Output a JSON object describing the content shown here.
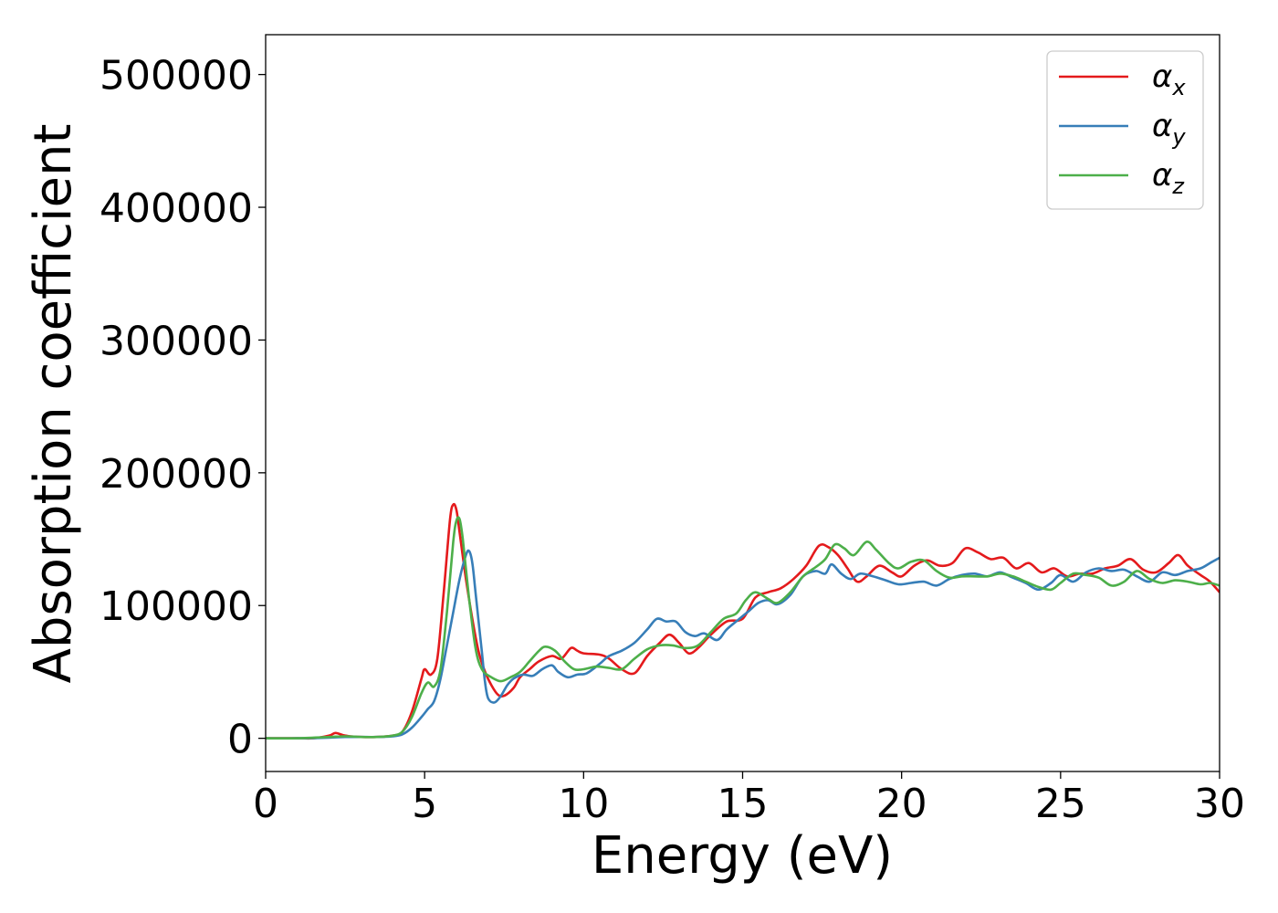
{
  "chart_data": {
    "type": "line",
    "title": "",
    "xlabel": "Energy (eV)",
    "ylabel": "Absorption coefficient",
    "xlim": [
      0,
      30
    ],
    "ylim": [
      -25000,
      530000
    ],
    "x_ticks": [
      0,
      5,
      10,
      15,
      20,
      25,
      30
    ],
    "y_ticks": [
      0,
      100000,
      200000,
      300000,
      400000,
      500000
    ],
    "grid": false,
    "legend_position": "top-right",
    "series": [
      {
        "name": "αx",
        "legend_main": "α",
        "legend_sub": "x",
        "color": "#e41a1c",
        "points": [
          [
            0,
            0
          ],
          [
            1,
            0
          ],
          [
            1.5,
            0
          ],
          [
            2.0,
            2000
          ],
          [
            2.2,
            4000
          ],
          [
            2.5,
            2000
          ],
          [
            3,
            1000
          ],
          [
            3.5,
            1000
          ],
          [
            4,
            2000
          ],
          [
            4.3,
            5000
          ],
          [
            4.6,
            20000
          ],
          [
            4.9,
            45000
          ],
          [
            5.0,
            52000
          ],
          [
            5.2,
            48000
          ],
          [
            5.4,
            60000
          ],
          [
            5.6,
            110000
          ],
          [
            5.8,
            165000
          ],
          [
            5.9,
            176000
          ],
          [
            6.0,
            172000
          ],
          [
            6.1,
            155000
          ],
          [
            6.3,
            120000
          ],
          [
            6.5,
            90000
          ],
          [
            6.7,
            65000
          ],
          [
            6.9,
            50000
          ],
          [
            7.1,
            40000
          ],
          [
            7.3,
            33000
          ],
          [
            7.5,
            32000
          ],
          [
            7.8,
            38000
          ],
          [
            8.0,
            46000
          ],
          [
            8.3,
            52000
          ],
          [
            8.6,
            58000
          ],
          [
            9.0,
            62000
          ],
          [
            9.3,
            60000
          ],
          [
            9.6,
            68000
          ],
          [
            9.8,
            66000
          ],
          [
            10,
            64000
          ],
          [
            10.5,
            63000
          ],
          [
            10.8,
            60000
          ],
          [
            11.2,
            52000
          ],
          [
            11.6,
            49000
          ],
          [
            12.0,
            62000
          ],
          [
            12.4,
            72000
          ],
          [
            12.7,
            78000
          ],
          [
            13.0,
            72000
          ],
          [
            13.3,
            64000
          ],
          [
            13.6,
            68000
          ],
          [
            14.0,
            78000
          ],
          [
            14.5,
            88000
          ],
          [
            15.0,
            90000
          ],
          [
            15.4,
            106000
          ],
          [
            15.8,
            110000
          ],
          [
            16.2,
            113000
          ],
          [
            16.6,
            120000
          ],
          [
            17.0,
            130000
          ],
          [
            17.4,
            145000
          ],
          [
            17.7,
            144000
          ],
          [
            18.0,
            138000
          ],
          [
            18.3,
            128000
          ],
          [
            18.6,
            118000
          ],
          [
            18.9,
            122000
          ],
          [
            19.3,
            130000
          ],
          [
            19.7,
            125000
          ],
          [
            20.0,
            122000
          ],
          [
            20.4,
            130000
          ],
          [
            20.8,
            134000
          ],
          [
            21.2,
            130000
          ],
          [
            21.6,
            132000
          ],
          [
            22.0,
            143000
          ],
          [
            22.4,
            140000
          ],
          [
            22.8,
            135000
          ],
          [
            23.2,
            136000
          ],
          [
            23.6,
            128000
          ],
          [
            24.0,
            132000
          ],
          [
            24.4,
            125000
          ],
          [
            24.8,
            128000
          ],
          [
            25.2,
            122000
          ],
          [
            25.6,
            124000
          ],
          [
            26.0,
            124000
          ],
          [
            26.4,
            128000
          ],
          [
            26.8,
            130000
          ],
          [
            27.2,
            135000
          ],
          [
            27.6,
            127000
          ],
          [
            28.0,
            125000
          ],
          [
            28.4,
            132000
          ],
          [
            28.7,
            138000
          ],
          [
            29.0,
            130000
          ],
          [
            29.4,
            123000
          ],
          [
            29.7,
            118000
          ],
          [
            30.0,
            110000
          ]
        ]
      },
      {
        "name": "αy",
        "legend_main": "α",
        "legend_sub": "y",
        "color": "#377eb8",
        "points": [
          [
            0,
            0
          ],
          [
            1,
            0
          ],
          [
            2.0,
            500
          ],
          [
            2.5,
            1000
          ],
          [
            3,
            1000
          ],
          [
            3.5,
            1000
          ],
          [
            4.0,
            1500
          ],
          [
            4.3,
            3000
          ],
          [
            4.6,
            8000
          ],
          [
            4.9,
            16000
          ],
          [
            5.1,
            22000
          ],
          [
            5.3,
            28000
          ],
          [
            5.5,
            45000
          ],
          [
            5.7,
            70000
          ],
          [
            5.9,
            95000
          ],
          [
            6.1,
            120000
          ],
          [
            6.3,
            138000
          ],
          [
            6.4,
            141000
          ],
          [
            6.5,
            132000
          ],
          [
            6.6,
            110000
          ],
          [
            6.8,
            65000
          ],
          [
            6.9,
            42000
          ],
          [
            7.0,
            30000
          ],
          [
            7.2,
            27000
          ],
          [
            7.4,
            32000
          ],
          [
            7.6,
            40000
          ],
          [
            7.8,
            45000
          ],
          [
            8.1,
            48000
          ],
          [
            8.4,
            47000
          ],
          [
            8.7,
            52000
          ],
          [
            9.0,
            55000
          ],
          [
            9.2,
            50000
          ],
          [
            9.5,
            46000
          ],
          [
            9.8,
            48000
          ],
          [
            10.1,
            49000
          ],
          [
            10.5,
            56000
          ],
          [
            10.8,
            62000
          ],
          [
            11.2,
            66000
          ],
          [
            11.6,
            72000
          ],
          [
            12.0,
            82000
          ],
          [
            12.3,
            90000
          ],
          [
            12.6,
            88000
          ],
          [
            12.9,
            88000
          ],
          [
            13.2,
            80000
          ],
          [
            13.5,
            77000
          ],
          [
            13.8,
            79000
          ],
          [
            14.2,
            74000
          ],
          [
            14.5,
            82000
          ],
          [
            14.9,
            90000
          ],
          [
            15.2,
            96000
          ],
          [
            15.5,
            102000
          ],
          [
            15.8,
            104000
          ],
          [
            16.1,
            101000
          ],
          [
            16.5,
            108000
          ],
          [
            16.9,
            122000
          ],
          [
            17.3,
            126000
          ],
          [
            17.6,
            124000
          ],
          [
            17.8,
            131000
          ],
          [
            18.1,
            124000
          ],
          [
            18.4,
            120000
          ],
          [
            18.7,
            124000
          ],
          [
            19.1,
            122000
          ],
          [
            19.5,
            119000
          ],
          [
            19.9,
            116000
          ],
          [
            20.3,
            117000
          ],
          [
            20.7,
            118000
          ],
          [
            21.1,
            115000
          ],
          [
            21.5,
            120000
          ],
          [
            21.9,
            123000
          ],
          [
            22.3,
            124000
          ],
          [
            22.7,
            122000
          ],
          [
            23.1,
            125000
          ],
          [
            23.5,
            121000
          ],
          [
            23.9,
            117000
          ],
          [
            24.3,
            112000
          ],
          [
            24.7,
            117000
          ],
          [
            25.0,
            123000
          ],
          [
            25.4,
            118000
          ],
          [
            25.8,
            125000
          ],
          [
            26.2,
            128000
          ],
          [
            26.6,
            126000
          ],
          [
            27.0,
            127000
          ],
          [
            27.4,
            122000
          ],
          [
            27.8,
            118000
          ],
          [
            28.2,
            125000
          ],
          [
            28.6,
            123000
          ],
          [
            29.0,
            126000
          ],
          [
            29.4,
            128000
          ],
          [
            29.7,
            132000
          ],
          [
            30.0,
            136000
          ]
        ]
      },
      {
        "name": "αz",
        "legend_main": "α",
        "legend_sub": "z",
        "color": "#4daf4a",
        "points": [
          [
            0,
            0
          ],
          [
            1,
            0
          ],
          [
            2.0,
            1000
          ],
          [
            2.5,
            1500
          ],
          [
            3,
            1000
          ],
          [
            3.5,
            1000
          ],
          [
            4.0,
            2000
          ],
          [
            4.3,
            5000
          ],
          [
            4.6,
            16000
          ],
          [
            4.9,
            34000
          ],
          [
            5.1,
            42000
          ],
          [
            5.3,
            39000
          ],
          [
            5.5,
            52000
          ],
          [
            5.7,
            95000
          ],
          [
            5.9,
            148000
          ],
          [
            6.0,
            164000
          ],
          [
            6.1,
            165000
          ],
          [
            6.2,
            150000
          ],
          [
            6.4,
            105000
          ],
          [
            6.6,
            68000
          ],
          [
            6.8,
            52000
          ],
          [
            7.1,
            46000
          ],
          [
            7.4,
            43000
          ],
          [
            7.7,
            46000
          ],
          [
            8.0,
            50000
          ],
          [
            8.3,
            58000
          ],
          [
            8.6,
            66000
          ],
          [
            8.8,
            69000
          ],
          [
            9.1,
            66000
          ],
          [
            9.4,
            58000
          ],
          [
            9.7,
            52000
          ],
          [
            10.0,
            52000
          ],
          [
            10.4,
            54000
          ],
          [
            10.8,
            53000
          ],
          [
            11.2,
            52000
          ],
          [
            11.6,
            60000
          ],
          [
            12.0,
            67000
          ],
          [
            12.4,
            70000
          ],
          [
            12.8,
            70000
          ],
          [
            13.2,
            68000
          ],
          [
            13.6,
            70000
          ],
          [
            14.0,
            80000
          ],
          [
            14.4,
            90000
          ],
          [
            14.8,
            94000
          ],
          [
            15.1,
            104000
          ],
          [
            15.4,
            110000
          ],
          [
            15.8,
            105000
          ],
          [
            16.1,
            102000
          ],
          [
            16.5,
            110000
          ],
          [
            16.9,
            122000
          ],
          [
            17.3,
            129000
          ],
          [
            17.6,
            135000
          ],
          [
            17.9,
            146000
          ],
          [
            18.2,
            143000
          ],
          [
            18.5,
            138000
          ],
          [
            18.9,
            148000
          ],
          [
            19.2,
            142000
          ],
          [
            19.6,
            132000
          ],
          [
            19.9,
            128000
          ],
          [
            20.3,
            133000
          ],
          [
            20.7,
            134000
          ],
          [
            21.1,
            126000
          ],
          [
            21.5,
            121000
          ],
          [
            21.9,
            122000
          ],
          [
            22.3,
            122000
          ],
          [
            22.7,
            122000
          ],
          [
            23.1,
            124000
          ],
          [
            23.5,
            122000
          ],
          [
            23.9,
            118000
          ],
          [
            24.3,
            114000
          ],
          [
            24.7,
            112000
          ],
          [
            25.0,
            117000
          ],
          [
            25.4,
            124000
          ],
          [
            25.8,
            123000
          ],
          [
            26.2,
            121000
          ],
          [
            26.6,
            115000
          ],
          [
            27.0,
            118000
          ],
          [
            27.4,
            126000
          ],
          [
            27.8,
            120000
          ],
          [
            28.2,
            117000
          ],
          [
            28.6,
            119000
          ],
          [
            29.0,
            118000
          ],
          [
            29.4,
            116000
          ],
          [
            29.7,
            117000
          ],
          [
            30.0,
            115000
          ]
        ]
      }
    ]
  }
}
